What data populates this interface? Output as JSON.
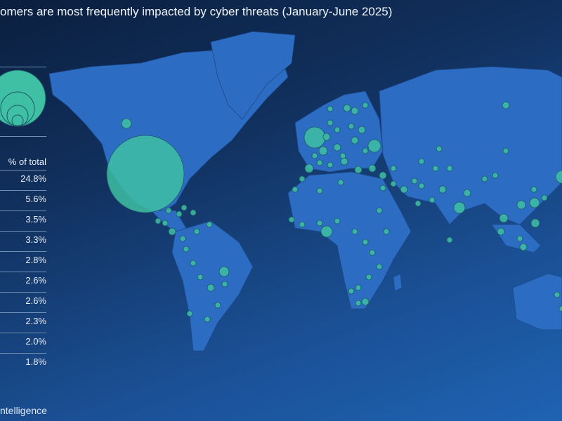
{
  "title": "omers are most frequently impacted by cyber threats  (January-June 2025)",
  "legend": {
    "column_header": "% of total",
    "values": [
      "24.8%",
      "5.6%",
      "3.5%",
      "3.3%",
      "2.8%",
      "2.6%",
      "2.6%",
      "2.3%",
      "2.0%",
      "1.8%"
    ]
  },
  "source": "ntelligence",
  "colors": {
    "bubble": "#3fbfa3",
    "land": "#2d6fc4",
    "background_top": "#0b1f3f",
    "background_bottom": "#1f63b3"
  }
}
